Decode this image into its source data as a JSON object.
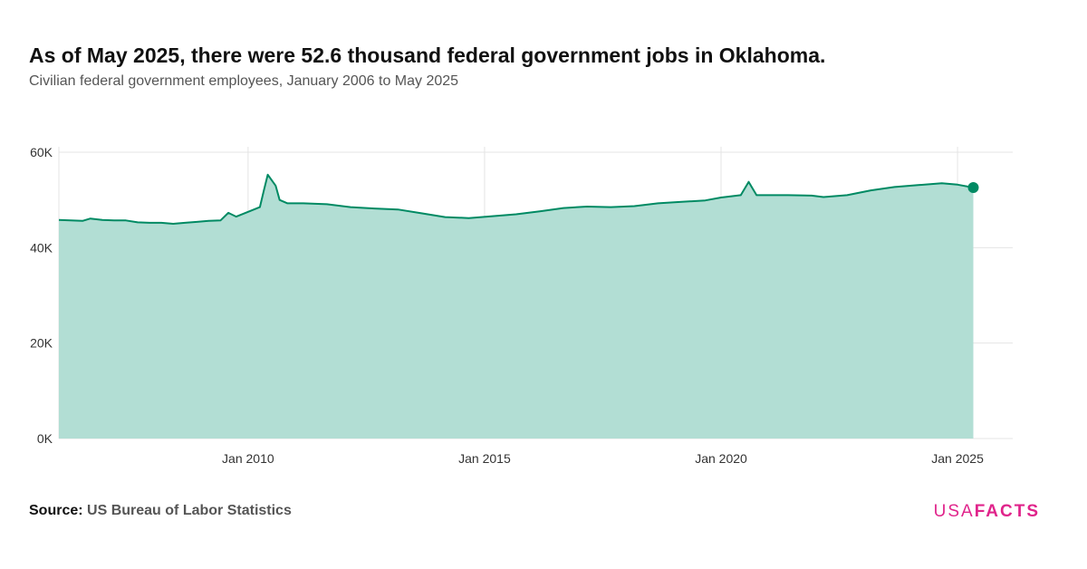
{
  "header": {
    "title": "As of May 2025, there were 52.6 thousand federal government jobs in Oklahoma.",
    "subtitle": "Civilian federal government employees, January 2006 to May 2025"
  },
  "footer": {
    "source_label": "Source:",
    "source_value": "US Bureau of Labor Statistics",
    "logo_part1": "USA",
    "logo_part2": "FACTS"
  },
  "colors": {
    "line": "#008a63",
    "area": "#b2ded4",
    "grid": "#e4e4e4",
    "logo": "#e0248b"
  },
  "chart_data": {
    "type": "area",
    "title": "",
    "xlabel": "",
    "ylabel": "",
    "ylim": [
      0,
      60000
    ],
    "yticks": [
      0,
      20000,
      40000,
      60000
    ],
    "ytick_labels": [
      "0K",
      "20K",
      "40K",
      "60K"
    ],
    "xlim": [
      "2006-01",
      "2026-03"
    ],
    "xticks": [
      "2010-01",
      "2015-01",
      "2020-01",
      "2025-01"
    ],
    "xtick_labels": [
      "Jan 2010",
      "Jan 2015",
      "Jan 2020",
      "Jan 2025"
    ],
    "grid": true,
    "highlight_last_point": true,
    "series": [
      {
        "points": [
          [
            "2006-01",
            45800
          ],
          [
            "2006-04",
            45700
          ],
          [
            "2006-07",
            45600
          ],
          [
            "2006-09",
            46100
          ],
          [
            "2006-12",
            45800
          ],
          [
            "2007-03",
            45700
          ],
          [
            "2007-06",
            45700
          ],
          [
            "2007-09",
            45300
          ],
          [
            "2007-12",
            45200
          ],
          [
            "2008-03",
            45200
          ],
          [
            "2008-06",
            45000
          ],
          [
            "2008-09",
            45200
          ],
          [
            "2008-12",
            45400
          ],
          [
            "2009-03",
            45600
          ],
          [
            "2009-06",
            45700
          ],
          [
            "2009-08",
            47300
          ],
          [
            "2009-10",
            46500
          ],
          [
            "2010-01",
            47500
          ],
          [
            "2010-04",
            48500
          ],
          [
            "2010-05",
            52000
          ],
          [
            "2010-06",
            55300
          ],
          [
            "2010-08",
            53000
          ],
          [
            "2010-09",
            50000
          ],
          [
            "2010-11",
            49300
          ],
          [
            "2011-03",
            49300
          ],
          [
            "2011-09",
            49100
          ],
          [
            "2012-03",
            48500
          ],
          [
            "2012-09",
            48200
          ],
          [
            "2013-03",
            48000
          ],
          [
            "2013-09",
            47200
          ],
          [
            "2014-03",
            46400
          ],
          [
            "2014-09",
            46200
          ],
          [
            "2015-03",
            46600
          ],
          [
            "2015-09",
            47000
          ],
          [
            "2016-03",
            47600
          ],
          [
            "2016-09",
            48300
          ],
          [
            "2017-03",
            48600
          ],
          [
            "2017-09",
            48500
          ],
          [
            "2018-03",
            48700
          ],
          [
            "2018-09",
            49300
          ],
          [
            "2019-03",
            49600
          ],
          [
            "2019-09",
            49900
          ],
          [
            "2020-01",
            50500
          ],
          [
            "2020-06",
            51000
          ],
          [
            "2020-08",
            53800
          ],
          [
            "2020-10",
            51000
          ],
          [
            "2021-01",
            51000
          ],
          [
            "2021-06",
            51000
          ],
          [
            "2021-12",
            50900
          ],
          [
            "2022-03",
            50600
          ],
          [
            "2022-09",
            51000
          ],
          [
            "2023-03",
            52000
          ],
          [
            "2023-09",
            52700
          ],
          [
            "2024-03",
            53100
          ],
          [
            "2024-09",
            53500
          ],
          [
            "2025-01",
            53200
          ],
          [
            "2025-05",
            52600
          ]
        ]
      }
    ]
  }
}
